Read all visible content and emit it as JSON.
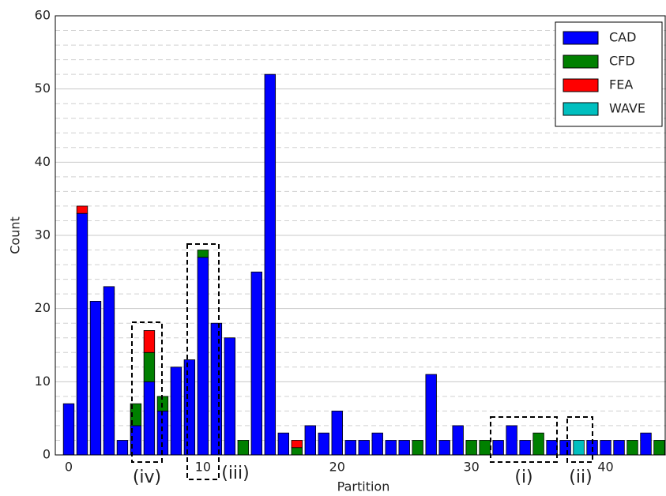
{
  "chart_data": {
    "type": "stacked_bar",
    "xlabel": "Partition",
    "ylabel": "Count",
    "x": [
      0,
      1,
      2,
      3,
      4,
      5,
      6,
      7,
      8,
      9,
      10,
      11,
      12,
      13,
      14,
      15,
      16,
      17,
      18,
      19,
      20,
      21,
      22,
      23,
      24,
      25,
      26,
      27,
      28,
      29,
      30,
      31,
      32,
      33,
      34,
      35,
      36,
      37,
      38,
      39,
      40,
      41,
      42,
      43,
      44
    ],
    "series": [
      {
        "name": "CAD",
        "color": "#0000ff",
        "values": [
          7,
          33,
          21,
          23,
          2,
          4,
          10,
          6,
          12,
          13,
          27,
          18,
          16,
          0,
          25,
          52,
          3,
          0,
          4,
          3,
          6,
          2,
          2,
          3,
          2,
          2,
          0,
          11,
          2,
          4,
          0,
          0,
          2,
          4,
          2,
          0,
          2,
          2,
          0,
          2,
          2,
          2,
          0,
          3,
          0
        ]
      },
      {
        "name": "CFD",
        "color": "#008000",
        "values": [
          0,
          0,
          0,
          0,
          0,
          3,
          4,
          2,
          0,
          0,
          1,
          0,
          0,
          2,
          0,
          0,
          0,
          1,
          0,
          0,
          0,
          0,
          0,
          0,
          0,
          0,
          2,
          0,
          0,
          0,
          2,
          2,
          0,
          0,
          0,
          3,
          0,
          0,
          0,
          0,
          0,
          0,
          2,
          0,
          2
        ]
      },
      {
        "name": "FEA",
        "color": "#ff0000",
        "values": [
          0,
          1,
          0,
          0,
          0,
          0,
          3,
          0,
          0,
          0,
          0,
          0,
          0,
          0,
          0,
          0,
          0,
          1,
          0,
          0,
          0,
          0,
          0,
          0,
          0,
          0,
          0,
          0,
          0,
          0,
          0,
          0,
          0,
          0,
          0,
          0,
          0,
          0,
          0,
          0,
          0,
          0,
          0,
          0,
          0
        ]
      },
      {
        "name": "WAVE",
        "color": "#00bfbf",
        "values": [
          0,
          0,
          0,
          0,
          0,
          0,
          0,
          0,
          0,
          0,
          0,
          0,
          0,
          0,
          0,
          0,
          0,
          0,
          0,
          0,
          0,
          0,
          0,
          0,
          0,
          0,
          0,
          0,
          0,
          0,
          0,
          0,
          0,
          0,
          0,
          0,
          0,
          0,
          2,
          0,
          0,
          0,
          0,
          0,
          0
        ]
      }
    ],
    "xlim": [
      -1,
      44.5
    ],
    "xticks": [
      0,
      10,
      20,
      30,
      40
    ],
    "ylim": [
      0,
      60
    ],
    "yticks": [
      0,
      10,
      20,
      30,
      40,
      50,
      60
    ],
    "minor_yticks": [
      2,
      4,
      6,
      8,
      12,
      14,
      16,
      18,
      22,
      24,
      26,
      28,
      32,
      34,
      36,
      38,
      42,
      44,
      46,
      48,
      52,
      54,
      56,
      58
    ],
    "grid": true,
    "legend": "upper right",
    "annotations": [
      "(i)",
      "(ii)",
      "(iii)",
      "(iv)"
    ]
  }
}
